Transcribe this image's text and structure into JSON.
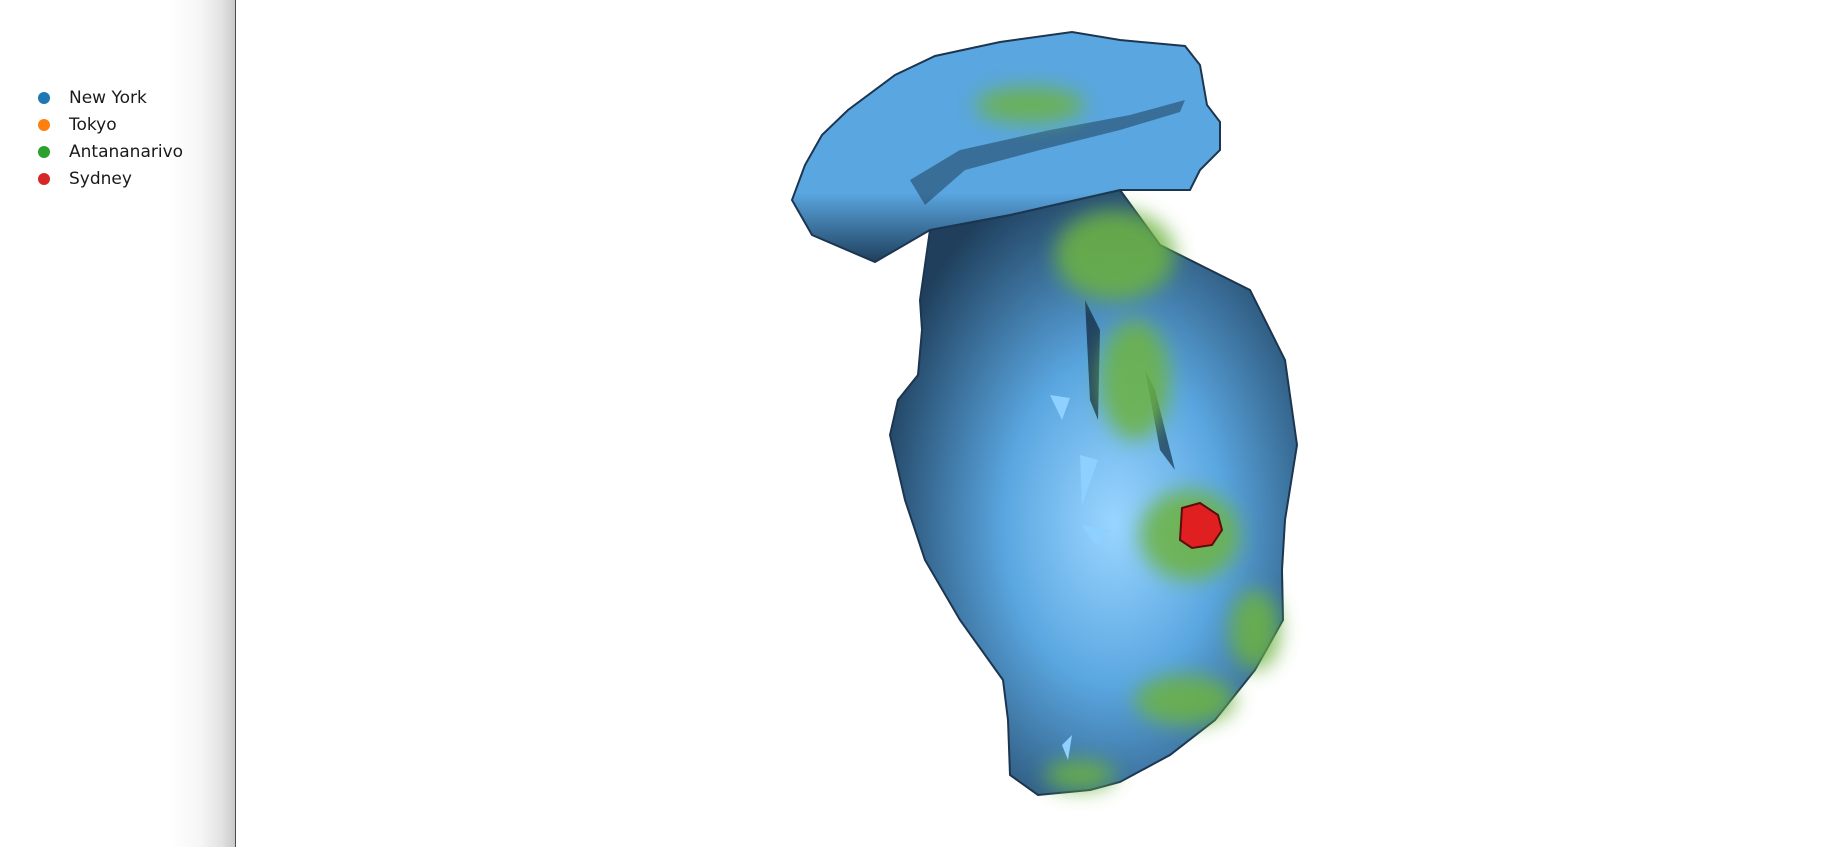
{
  "legend": {
    "items": [
      {
        "label": "New York",
        "color": "#1f77b4"
      },
      {
        "label": "Tokyo",
        "color": "#ff7f0e"
      },
      {
        "label": "Antananarivo",
        "color": "#2ca02c"
      },
      {
        "label": "Sydney",
        "color": "#d62728"
      }
    ]
  },
  "scene": {
    "surface_color": "#5aa6e0",
    "shadow_color": "#1f3f5c",
    "highlight_color": "#8ed0ff",
    "patch_color": "#6db33f",
    "marker_color": "#e02020"
  }
}
